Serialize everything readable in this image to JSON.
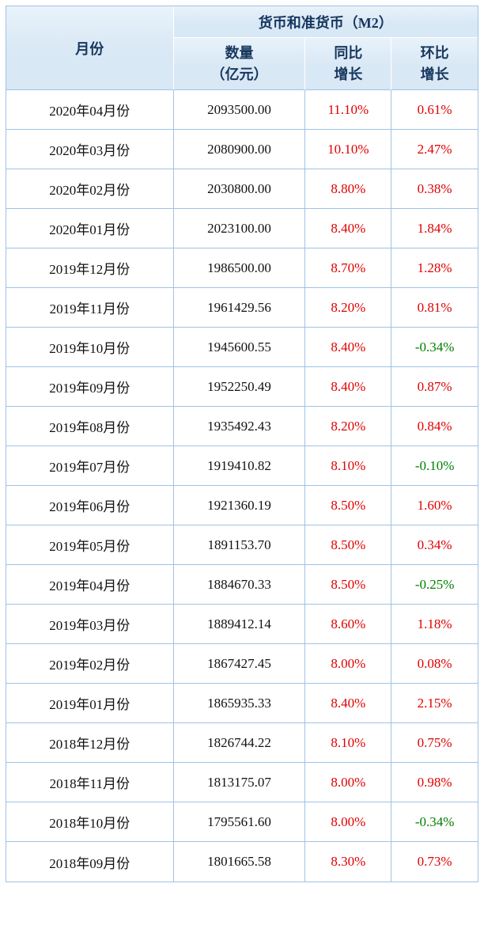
{
  "table": {
    "group_header": "货币和准货币（M2）",
    "month_header": "月份",
    "columns": [
      {
        "line1": "数量",
        "line2": "（亿元）"
      },
      {
        "line1": "同比",
        "line2": "增长"
      },
      {
        "line1": "环比",
        "line2": "增长"
      }
    ],
    "rows": [
      {
        "month": "2020年04月份",
        "amount": "2093500.00",
        "yoy": "11.10%",
        "mom": "0.61%"
      },
      {
        "month": "2020年03月份",
        "amount": "2080900.00",
        "yoy": "10.10%",
        "mom": "2.47%"
      },
      {
        "month": "2020年02月份",
        "amount": "2030800.00",
        "yoy": "8.80%",
        "mom": "0.38%"
      },
      {
        "month": "2020年01月份",
        "amount": "2023100.00",
        "yoy": "8.40%",
        "mom": "1.84%"
      },
      {
        "month": "2019年12月份",
        "amount": "1986500.00",
        "yoy": "8.70%",
        "mom": "1.28%"
      },
      {
        "month": "2019年11月份",
        "amount": "1961429.56",
        "yoy": "8.20%",
        "mom": "0.81%"
      },
      {
        "month": "2019年10月份",
        "amount": "1945600.55",
        "yoy": "8.40%",
        "mom": "-0.34%"
      },
      {
        "month": "2019年09月份",
        "amount": "1952250.49",
        "yoy": "8.40%",
        "mom": "0.87%"
      },
      {
        "month": "2019年08月份",
        "amount": "1935492.43",
        "yoy": "8.20%",
        "mom": "0.84%"
      },
      {
        "month": "2019年07月份",
        "amount": "1919410.82",
        "yoy": "8.10%",
        "mom": "-0.10%"
      },
      {
        "month": "2019年06月份",
        "amount": "1921360.19",
        "yoy": "8.50%",
        "mom": "1.60%"
      },
      {
        "month": "2019年05月份",
        "amount": "1891153.70",
        "yoy": "8.50%",
        "mom": "0.34%"
      },
      {
        "month": "2019年04月份",
        "amount": "1884670.33",
        "yoy": "8.50%",
        "mom": "-0.25%"
      },
      {
        "month": "2019年03月份",
        "amount": "1889412.14",
        "yoy": "8.60%",
        "mom": "1.18%"
      },
      {
        "month": "2019年02月份",
        "amount": "1867427.45",
        "yoy": "8.00%",
        "mom": "0.08%"
      },
      {
        "month": "2019年01月份",
        "amount": "1865935.33",
        "yoy": "8.40%",
        "mom": "2.15%"
      },
      {
        "month": "2018年12月份",
        "amount": "1826744.22",
        "yoy": "8.10%",
        "mom": "0.75%"
      },
      {
        "month": "2018年11月份",
        "amount": "1813175.07",
        "yoy": "8.00%",
        "mom": "0.98%"
      },
      {
        "month": "2018年10月份",
        "amount": "1795561.60",
        "yoy": "8.00%",
        "mom": "-0.34%"
      },
      {
        "month": "2018年09月份",
        "amount": "1801665.58",
        "yoy": "8.30%",
        "mom": "0.73%"
      }
    ]
  },
  "colors": {
    "positive": "#e00000",
    "negative": "#008000",
    "header_bg": "#d9e8f5",
    "header_text": "#17375e",
    "border": "#9fc3e5"
  }
}
